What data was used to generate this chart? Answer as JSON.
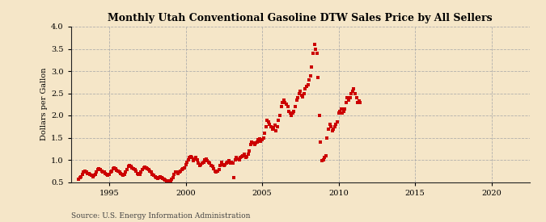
{
  "title": "Monthly Utah Conventional Gasoline DTW Sales Price by All Sellers",
  "ylabel": "Dollars per Gallon",
  "source": "Source: U.S. Energy Information Administration",
  "background_color": "#f5e6c8",
  "plot_bg_color": "#f5e6c8",
  "marker_color": "#cc0000",
  "xlim_left": 1992.5,
  "xlim_right": 2022.5,
  "ylim_bottom": 0.5,
  "ylim_top": 4.0,
  "yticks": [
    0.5,
    1.0,
    1.5,
    2.0,
    2.5,
    3.0,
    3.5,
    4.0
  ],
  "xticks": [
    1995,
    2000,
    2005,
    2010,
    2015,
    2020
  ],
  "data": [
    [
      1993.0,
      0.57
    ],
    [
      1993.08,
      0.6
    ],
    [
      1993.17,
      0.62
    ],
    [
      1993.25,
      0.68
    ],
    [
      1993.33,
      0.72
    ],
    [
      1993.42,
      0.75
    ],
    [
      1993.5,
      0.72
    ],
    [
      1993.58,
      0.7
    ],
    [
      1993.67,
      0.7
    ],
    [
      1993.75,
      0.68
    ],
    [
      1993.83,
      0.65
    ],
    [
      1993.92,
      0.62
    ],
    [
      1994.0,
      0.65
    ],
    [
      1994.08,
      0.68
    ],
    [
      1994.17,
      0.72
    ],
    [
      1994.25,
      0.78
    ],
    [
      1994.33,
      0.8
    ],
    [
      1994.42,
      0.78
    ],
    [
      1994.5,
      0.75
    ],
    [
      1994.58,
      0.73
    ],
    [
      1994.67,
      0.72
    ],
    [
      1994.75,
      0.7
    ],
    [
      1994.83,
      0.68
    ],
    [
      1994.92,
      0.65
    ],
    [
      1995.0,
      0.68
    ],
    [
      1995.08,
      0.72
    ],
    [
      1995.17,
      0.75
    ],
    [
      1995.25,
      0.8
    ],
    [
      1995.33,
      0.82
    ],
    [
      1995.42,
      0.8
    ],
    [
      1995.5,
      0.77
    ],
    [
      1995.58,
      0.75
    ],
    [
      1995.67,
      0.73
    ],
    [
      1995.75,
      0.7
    ],
    [
      1995.83,
      0.68
    ],
    [
      1995.92,
      0.65
    ],
    [
      1996.0,
      0.68
    ],
    [
      1996.08,
      0.72
    ],
    [
      1996.17,
      0.78
    ],
    [
      1996.25,
      0.85
    ],
    [
      1996.33,
      0.87
    ],
    [
      1996.42,
      0.85
    ],
    [
      1996.5,
      0.82
    ],
    [
      1996.58,
      0.8
    ],
    [
      1996.67,
      0.78
    ],
    [
      1996.75,
      0.75
    ],
    [
      1996.83,
      0.7
    ],
    [
      1996.92,
      0.67
    ],
    [
      1997.0,
      0.68
    ],
    [
      1997.08,
      0.72
    ],
    [
      1997.17,
      0.78
    ],
    [
      1997.25,
      0.82
    ],
    [
      1997.33,
      0.83
    ],
    [
      1997.42,
      0.82
    ],
    [
      1997.5,
      0.8
    ],
    [
      1997.58,
      0.78
    ],
    [
      1997.67,
      0.75
    ],
    [
      1997.75,
      0.72
    ],
    [
      1997.83,
      0.68
    ],
    [
      1997.92,
      0.65
    ],
    [
      1998.0,
      0.62
    ],
    [
      1998.08,
      0.6
    ],
    [
      1998.17,
      0.58
    ],
    [
      1998.25,
      0.6
    ],
    [
      1998.33,
      0.62
    ],
    [
      1998.42,
      0.6
    ],
    [
      1998.5,
      0.58
    ],
    [
      1998.58,
      0.56
    ],
    [
      1998.67,
      0.55
    ],
    [
      1998.75,
      0.53
    ],
    [
      1998.83,
      0.52
    ],
    [
      1998.92,
      0.5
    ],
    [
      1999.0,
      0.53
    ],
    [
      1999.08,
      0.56
    ],
    [
      1999.17,
      0.6
    ],
    [
      1999.25,
      0.68
    ],
    [
      1999.33,
      0.73
    ],
    [
      1999.42,
      0.72
    ],
    [
      1999.5,
      0.7
    ],
    [
      1999.58,
      0.72
    ],
    [
      1999.67,
      0.75
    ],
    [
      1999.75,
      0.78
    ],
    [
      1999.83,
      0.8
    ],
    [
      1999.92,
      0.82
    ],
    [
      2000.0,
      0.9
    ],
    [
      2000.08,
      0.95
    ],
    [
      2000.17,
      1.0
    ],
    [
      2000.25,
      1.05
    ],
    [
      2000.33,
      1.08
    ],
    [
      2000.42,
      1.05
    ],
    [
      2000.5,
      0.98
    ],
    [
      2000.58,
      1.02
    ],
    [
      2000.67,
      1.05
    ],
    [
      2000.75,
      1.0
    ],
    [
      2000.83,
      0.92
    ],
    [
      2000.92,
      0.88
    ],
    [
      2001.0,
      0.9
    ],
    [
      2001.08,
      0.92
    ],
    [
      2001.17,
      0.95
    ],
    [
      2001.25,
      1.0
    ],
    [
      2001.33,
      1.02
    ],
    [
      2001.42,
      0.98
    ],
    [
      2001.5,
      0.95
    ],
    [
      2001.58,
      0.92
    ],
    [
      2001.67,
      0.88
    ],
    [
      2001.75,
      0.85
    ],
    [
      2001.83,
      0.8
    ],
    [
      2001.92,
      0.75
    ],
    [
      2002.0,
      0.72
    ],
    [
      2002.08,
      0.75
    ],
    [
      2002.17,
      0.78
    ],
    [
      2002.25,
      0.88
    ],
    [
      2002.33,
      0.95
    ],
    [
      2002.42,
      0.9
    ],
    [
      2002.5,
      0.88
    ],
    [
      2002.58,
      0.9
    ],
    [
      2002.67,
      0.92
    ],
    [
      2002.75,
      0.95
    ],
    [
      2002.83,
      0.98
    ],
    [
      2002.92,
      0.92
    ],
    [
      2003.0,
      0.95
    ],
    [
      2003.08,
      0.92
    ],
    [
      2003.17,
      0.6
    ],
    [
      2003.25,
      1.0
    ],
    [
      2003.33,
      1.05
    ],
    [
      2003.42,
      1.02
    ],
    [
      2003.5,
      1.0
    ],
    [
      2003.58,
      1.05
    ],
    [
      2003.67,
      1.08
    ],
    [
      2003.75,
      1.1
    ],
    [
      2003.83,
      1.12
    ],
    [
      2003.92,
      1.05
    ],
    [
      2004.0,
      1.08
    ],
    [
      2004.08,
      1.12
    ],
    [
      2004.17,
      1.2
    ],
    [
      2004.25,
      1.35
    ],
    [
      2004.33,
      1.4
    ],
    [
      2004.42,
      1.38
    ],
    [
      2004.5,
      1.35
    ],
    [
      2004.58,
      1.38
    ],
    [
      2004.67,
      1.4
    ],
    [
      2004.75,
      1.45
    ],
    [
      2004.83,
      1.48
    ],
    [
      2004.92,
      1.42
    ],
    [
      2005.0,
      1.45
    ],
    [
      2005.08,
      1.5
    ],
    [
      2005.17,
      1.6
    ],
    [
      2005.25,
      1.75
    ],
    [
      2005.33,
      1.9
    ],
    [
      2005.42,
      1.85
    ],
    [
      2005.5,
      1.8
    ],
    [
      2005.58,
      1.75
    ],
    [
      2005.67,
      1.7
    ],
    [
      2005.75,
      1.72
    ],
    [
      2005.83,
      1.78
    ],
    [
      2005.92,
      1.65
    ],
    [
      2006.0,
      1.75
    ],
    [
      2006.08,
      1.9
    ],
    [
      2006.17,
      2.0
    ],
    [
      2006.25,
      2.2
    ],
    [
      2006.33,
      2.3
    ],
    [
      2006.42,
      2.35
    ],
    [
      2006.5,
      2.3
    ],
    [
      2006.58,
      2.25
    ],
    [
      2006.67,
      2.2
    ],
    [
      2006.75,
      2.1
    ],
    [
      2006.83,
      2.05
    ],
    [
      2006.92,
      2.0
    ],
    [
      2007.0,
      2.05
    ],
    [
      2007.08,
      2.1
    ],
    [
      2007.17,
      2.2
    ],
    [
      2007.25,
      2.35
    ],
    [
      2007.33,
      2.4
    ],
    [
      2007.42,
      2.5
    ],
    [
      2007.5,
      2.55
    ],
    [
      2007.58,
      2.45
    ],
    [
      2007.67,
      2.42
    ],
    [
      2007.75,
      2.5
    ],
    [
      2007.83,
      2.6
    ],
    [
      2007.92,
      2.65
    ],
    [
      2008.0,
      2.7
    ],
    [
      2008.08,
      2.8
    ],
    [
      2008.17,
      2.9
    ],
    [
      2008.25,
      3.1
    ],
    [
      2008.33,
      3.4
    ],
    [
      2008.42,
      3.6
    ],
    [
      2008.5,
      3.5
    ],
    [
      2008.58,
      3.4
    ],
    [
      2008.67,
      2.85
    ],
    [
      2008.75,
      2.0
    ],
    [
      2008.83,
      1.4
    ],
    [
      2008.92,
      0.98
    ],
    [
      2009.0,
      1.0
    ],
    [
      2009.08,
      1.05
    ],
    [
      2009.17,
      1.1
    ],
    [
      2009.25,
      1.5
    ],
    [
      2009.33,
      1.7
    ],
    [
      2009.42,
      1.8
    ],
    [
      2009.5,
      1.75
    ],
    [
      2009.58,
      1.65
    ],
    [
      2009.67,
      1.7
    ],
    [
      2009.75,
      1.75
    ],
    [
      2009.83,
      1.8
    ],
    [
      2009.92,
      1.85
    ],
    [
      2010.0,
      2.05
    ],
    [
      2010.08,
      2.1
    ],
    [
      2010.17,
      2.15
    ],
    [
      2010.25,
      2.05
    ],
    [
      2010.33,
      2.1
    ],
    [
      2010.42,
      2.15
    ],
    [
      2010.5,
      2.3
    ],
    [
      2010.58,
      2.4
    ],
    [
      2010.67,
      2.35
    ],
    [
      2010.75,
      2.4
    ],
    [
      2010.83,
      2.5
    ],
    [
      2010.92,
      2.55
    ],
    [
      2011.0,
      2.6
    ],
    [
      2011.08,
      2.5
    ],
    [
      2011.17,
      2.4
    ],
    [
      2011.25,
      2.3
    ],
    [
      2011.33,
      2.32
    ],
    [
      2011.42,
      2.3
    ]
  ]
}
